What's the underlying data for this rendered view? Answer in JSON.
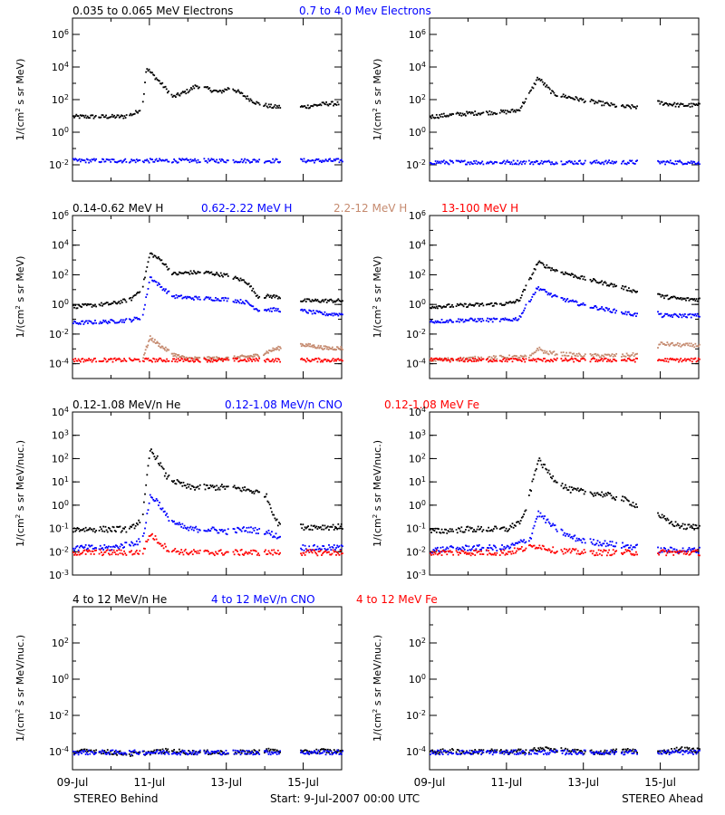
{
  "figure": {
    "footer_left": "STEREO Behind",
    "footer_center": "Start:  9-Jul-2007 00:00 UTC",
    "footer_right": "STEREO Ahead",
    "x_ticks": [
      "09-Jul",
      "11-Jul",
      "13-Jul",
      "15-Jul"
    ],
    "x_range_days": [
      0,
      7
    ]
  },
  "rows": [
    {
      "row_labels": [
        {
          "text": "0.035 to 0.065 MeV Electrons",
          "color": "#000000"
        },
        {
          "text": "0.7 to 4.0 Mev Electrons",
          "color": "#0000ff"
        }
      ],
      "ylabel_html": "1/(cm<tspan baseline-shift=\"super\" font-size=\"7\">2</tspan> s sr MeV)",
      "ylabel_parts": [
        "1/(cm",
        "2",
        " s sr MeV)"
      ],
      "y_exp_range": [
        -3,
        7
      ],
      "y_ticks": [
        {
          "base": "10",
          "exp": "-2",
          "v": -2
        },
        {
          "base": "10",
          "exp": "0",
          "v": 0
        },
        {
          "base": "10",
          "exp": "2",
          "v": 2
        },
        {
          "base": "10",
          "exp": "4",
          "v": 4
        },
        {
          "base": "10",
          "exp": "6",
          "v": 6
        }
      ]
    },
    {
      "row_labels": [
        {
          "text": "0.14-0.62 MeV H",
          "color": "#000000"
        },
        {
          "text": "0.62-2.22 MeV H",
          "color": "#0000ff"
        },
        {
          "text": "2.2-12 MeV H",
          "color": "#c58a6f"
        },
        {
          "text": "13-100 MeV H",
          "color": "#ff0000"
        }
      ],
      "ylabel_parts": [
        "1/(cm",
        "2",
        " s sr MeV)"
      ],
      "y_exp_range": [
        -5,
        6
      ],
      "y_ticks": [
        {
          "base": "10",
          "exp": "-4",
          "v": -4
        },
        {
          "base": "10",
          "exp": "-2",
          "v": -2
        },
        {
          "base": "10",
          "exp": "0",
          "v": 0
        },
        {
          "base": "10",
          "exp": "2",
          "v": 2
        },
        {
          "base": "10",
          "exp": "4",
          "v": 4
        },
        {
          "base": "10",
          "exp": "6",
          "v": 6
        }
      ]
    },
    {
      "row_labels": [
        {
          "text": "0.12-1.08 MeV/n He",
          "color": "#000000"
        },
        {
          "text": "0.12-1.08 MeV/n CNO",
          "color": "#0000ff"
        },
        {
          "text": "0.12-1.08 MeV Fe",
          "color": "#ff0000"
        }
      ],
      "ylabel_parts": [
        "1/(cm",
        "2",
        " s sr MeV/nuc.)"
      ],
      "y_exp_range": [
        -3,
        4
      ],
      "y_ticks": [
        {
          "base": "10",
          "exp": "-3",
          "v": -3
        },
        {
          "base": "10",
          "exp": "-2",
          "v": -2
        },
        {
          "base": "10",
          "exp": "-1",
          "v": -1
        },
        {
          "base": "10",
          "exp": "0",
          "v": 0
        },
        {
          "base": "10",
          "exp": "1",
          "v": 1
        },
        {
          "base": "10",
          "exp": "2",
          "v": 2
        },
        {
          "base": "10",
          "exp": "3",
          "v": 3
        },
        {
          "base": "10",
          "exp": "4",
          "v": 4
        }
      ]
    },
    {
      "row_labels": [
        {
          "text": "4 to 12 MeV/n He",
          "color": "#000000"
        },
        {
          "text": "4 to 12 MeV/n CNO",
          "color": "#0000ff"
        },
        {
          "text": "4 to 12 MeV Fe",
          "color": "#ff0000"
        }
      ],
      "ylabel_parts": [
        "1/(cm",
        "2",
        " s sr MeV/nuc.)"
      ],
      "y_exp_range": [
        -5,
        4
      ],
      "y_ticks": [
        {
          "base": "10",
          "exp": "-4",
          "v": -4
        },
        {
          "base": "10",
          "exp": "-2",
          "v": -2
        },
        {
          "base": "10",
          "exp": "0",
          "v": 0
        },
        {
          "base": "10",
          "exp": "2",
          "v": 2
        }
      ]
    }
  ],
  "chart_data": [
    {
      "type": "scatter",
      "spacecraft": "STEREO Behind",
      "y_scale": "log",
      "xlim": [
        0,
        7
      ],
      "ylim_log10": [
        -3,
        7
      ],
      "series": [
        {
          "name": "0.035 to 0.065 MeV Electrons",
          "color": "#000000",
          "x": [
            0.0,
            0.5,
            1.0,
            1.3,
            1.6,
            1.8,
            1.9,
            2.3,
            2.6,
            3.0,
            3.2,
            3.8,
            4.1,
            4.5,
            4.8,
            5.2,
            6.0,
            6.6,
            6.9
          ],
          "log_y": [
            1.0,
            1.0,
            1.0,
            1.0,
            1.2,
            1.6,
            4.0,
            3.0,
            2.2,
            2.6,
            2.9,
            2.5,
            2.8,
            2.2,
            1.8,
            1.6,
            1.6,
            1.8,
            1.8
          ]
        },
        {
          "name": "0.7 to 4.0 Mev Electrons",
          "color": "#0000ff",
          "x": [
            0.0,
            1.0,
            2.0,
            3.0,
            4.0,
            5.0,
            6.0,
            7.0
          ],
          "log_y": [
            -1.7,
            -1.7,
            -1.7,
            -1.7,
            -1.7,
            -1.7,
            -1.7,
            -1.7
          ]
        }
      ]
    },
    {
      "type": "scatter",
      "spacecraft": "STEREO Ahead",
      "y_scale": "log",
      "xlim": [
        0,
        7
      ],
      "ylim_log10": [
        -3,
        7
      ],
      "series": [
        {
          "name": "0.035 to 0.065 MeV Electrons",
          "color": "#000000",
          "x": [
            0.0,
            1.0,
            2.0,
            2.3,
            2.6,
            2.8,
            3.2,
            4.0,
            5.0,
            5.5,
            5.8,
            6.5,
            7.0
          ],
          "log_y": [
            1.0,
            1.2,
            1.3,
            1.4,
            2.5,
            3.4,
            2.4,
            2.0,
            1.6,
            1.6,
            1.9,
            1.7,
            1.7
          ]
        },
        {
          "name": "0.7 to 4.0 Mev Electrons",
          "color": "#0000ff",
          "x": [
            0.0,
            1.0,
            2.0,
            3.0,
            4.0,
            5.0,
            6.0,
            7.0
          ],
          "log_y": [
            -1.8,
            -1.8,
            -1.8,
            -1.8,
            -1.8,
            -1.8,
            -1.8,
            -1.8
          ]
        }
      ]
    },
    {
      "type": "scatter",
      "spacecraft": "STEREO Behind",
      "y_scale": "log",
      "xlim": [
        0,
        7
      ],
      "ylim_log10": [
        -5,
        6
      ],
      "series": [
        {
          "name": "0.14-0.62 MeV H",
          "color": "#000000",
          "x": [
            0.0,
            1.0,
            1.5,
            1.8,
            2.0,
            2.3,
            2.6,
            3.0,
            3.5,
            4.0,
            4.5,
            4.8,
            5.2,
            5.5,
            6.0,
            6.6,
            7.0
          ],
          "log_y": [
            -0.1,
            0.1,
            0.4,
            1.2,
            3.5,
            3.0,
            2.1,
            2.2,
            2.2,
            2.0,
            1.6,
            0.6,
            0.6,
            0.5,
            0.3,
            0.3,
            0.3
          ]
        },
        {
          "name": "0.62-2.22 MeV H",
          "color": "#0000ff",
          "x": [
            0.0,
            1.0,
            1.5,
            1.8,
            2.0,
            2.3,
            2.6,
            3.0,
            4.0,
            4.5,
            4.8,
            5.2,
            6.0,
            6.6,
            7.0
          ],
          "log_y": [
            -1.2,
            -1.1,
            -1.0,
            -0.8,
            1.9,
            1.2,
            0.6,
            0.5,
            0.4,
            0.2,
            -0.3,
            -0.3,
            -0.4,
            -0.6,
            -0.6
          ]
        },
        {
          "name": "2.2-12 MeV H",
          "color": "#c58a6f",
          "x": [
            1.8,
            2.0,
            2.3,
            2.6,
            2.8,
            3.0,
            4.0,
            4.8,
            5.2,
            5.5,
            5.8,
            6.6,
            7.0
          ],
          "log_y": [
            -3.6,
            -2.2,
            -2.8,
            -3.3,
            -3.5,
            -3.6,
            -3.6,
            -3.4,
            -3.0,
            -2.8,
            -2.6,
            -2.9,
            -2.9
          ]
        },
        {
          "name": "13-100 MeV H",
          "color": "#ff0000",
          "x": [
            0.0,
            1.0,
            2.0,
            3.0,
            4.0,
            5.0,
            6.0,
            7.0
          ],
          "log_y": [
            -3.7,
            -3.7,
            -3.7,
            -3.7,
            -3.7,
            -3.7,
            -3.7,
            -3.7
          ]
        }
      ]
    },
    {
      "type": "scatter",
      "spacecraft": "STEREO Ahead",
      "y_scale": "log",
      "xlim": [
        0,
        7
      ],
      "ylim_log10": [
        -5,
        6
      ],
      "series": [
        {
          "name": "0.14-0.62 MeV H",
          "color": "#000000",
          "x": [
            0.0,
            1.0,
            2.0,
            2.3,
            2.6,
            2.8,
            3.2,
            4.0,
            5.0,
            5.5,
            5.8,
            6.0,
            6.6,
            7.0
          ],
          "log_y": [
            -0.1,
            0.0,
            0.1,
            0.3,
            1.8,
            2.9,
            2.4,
            1.8,
            1.2,
            0.8,
            1.2,
            0.6,
            0.4,
            0.4
          ]
        },
        {
          "name": "0.62-2.22 MeV H",
          "color": "#0000ff",
          "x": [
            0.0,
            1.0,
            2.0,
            2.3,
            2.6,
            2.8,
            3.2,
            4.0,
            5.0,
            5.5,
            5.8,
            6.0,
            6.6,
            7.0
          ],
          "log_y": [
            -1.1,
            -1.0,
            -1.0,
            -0.9,
            0.4,
            1.2,
            0.6,
            0.0,
            -0.5,
            -0.7,
            -0.2,
            -0.7,
            -0.7,
            -0.7
          ]
        },
        {
          "name": "2.2-12 MeV H",
          "color": "#c58a6f",
          "x": [
            0.0,
            1.0,
            2.0,
            2.6,
            2.8,
            3.0,
            4.0,
            5.0,
            5.5,
            5.8,
            6.0,
            6.6,
            7.0
          ],
          "log_y": [
            -3.7,
            -3.6,
            -3.5,
            -3.5,
            -2.9,
            -3.2,
            -3.4,
            -3.4,
            -3.3,
            -3.0,
            -2.6,
            -2.7,
            -2.7
          ]
        },
        {
          "name": "13-100 MeV H",
          "color": "#ff0000",
          "x": [
            0.0,
            1.0,
            2.0,
            3.0,
            4.0,
            5.0,
            6.0,
            7.0
          ],
          "log_y": [
            -3.7,
            -3.7,
            -3.7,
            -3.7,
            -3.7,
            -3.7,
            -3.7,
            -3.7
          ]
        }
      ]
    },
    {
      "type": "scatter",
      "spacecraft": "STEREO Behind",
      "y_scale": "log",
      "xlim": [
        0,
        7
      ],
      "ylim_log10": [
        -3,
        4
      ],
      "series": [
        {
          "name": "0.12-1.08 MeV/n He",
          "color": "#000000",
          "x": [
            0.0,
            1.0,
            1.5,
            1.8,
            2.0,
            2.2,
            2.4,
            2.7,
            3.0,
            3.5,
            4.0,
            4.5,
            5.0,
            5.3,
            5.6,
            6.0,
            6.6,
            7.0
          ],
          "log_y": [
            -1.0,
            -1.0,
            -1.0,
            -0.5,
            2.4,
            2.0,
            1.3,
            1.0,
            0.8,
            0.8,
            0.8,
            0.7,
            0.5,
            -0.7,
            -0.9,
            -0.9,
            -0.9,
            -0.9
          ]
        },
        {
          "name": "0.12-1.08 MeV/n CNO",
          "color": "#0000ff",
          "x": [
            0.0,
            1.0,
            1.8,
            2.0,
            2.2,
            2.4,
            2.7,
            3.0,
            3.5,
            4.0,
            4.5,
            5.0,
            5.3,
            6.0,
            7.0
          ],
          "log_y": [
            -1.8,
            -1.8,
            -1.5,
            0.4,
            0.2,
            -0.4,
            -0.8,
            -1.0,
            -1.0,
            -1.1,
            -1.0,
            -1.1,
            -1.3,
            -1.8,
            -1.8
          ]
        },
        {
          "name": "0.12-1.08 MeV Fe",
          "color": "#ff0000",
          "x": [
            0.0,
            1.0,
            1.8,
            2.0,
            2.2,
            2.5,
            3.0,
            4.0,
            5.0,
            6.0,
            7.0
          ],
          "log_y": [
            -2.0,
            -2.0,
            -2.0,
            -1.2,
            -1.5,
            -1.9,
            -2.0,
            -2.0,
            -2.0,
            -2.0,
            -2.0
          ]
        }
      ]
    },
    {
      "type": "scatter",
      "spacecraft": "STEREO Ahead",
      "y_scale": "log",
      "xlim": [
        0,
        7
      ],
      "ylim_log10": [
        -3,
        4
      ],
      "series": [
        {
          "name": "0.12-1.08 MeV/n He",
          "color": "#000000",
          "x": [
            0.0,
            1.0,
            2.0,
            2.4,
            2.6,
            2.8,
            3.2,
            3.6,
            4.0,
            4.5,
            5.0,
            5.4,
            5.8,
            6.2,
            6.6,
            7.0
          ],
          "log_y": [
            -1.1,
            -1.0,
            -1.0,
            -0.6,
            0.6,
            2.0,
            1.2,
            0.7,
            0.6,
            0.5,
            0.3,
            0.0,
            -0.2,
            -0.7,
            -0.9,
            -0.9
          ]
        },
        {
          "name": "0.12-1.08 MeV/n CNO",
          "color": "#0000ff",
          "x": [
            0.0,
            1.0,
            2.0,
            2.6,
            2.8,
            3.2,
            3.6,
            4.0,
            5.0,
            6.0,
            7.0
          ],
          "log_y": [
            -1.9,
            -1.8,
            -1.8,
            -1.4,
            -0.3,
            -0.9,
            -1.3,
            -1.5,
            -1.7,
            -1.9,
            -1.9
          ]
        },
        {
          "name": "0.12-1.08 MeV Fe",
          "color": "#ff0000",
          "x": [
            0.0,
            1.0,
            2.0,
            2.8,
            3.2,
            4.0,
            5.0,
            6.0,
            7.0
          ],
          "log_y": [
            -2.0,
            -2.0,
            -2.0,
            -1.7,
            -1.9,
            -2.0,
            -2.0,
            -2.0,
            -2.0
          ]
        }
      ]
    },
    {
      "type": "scatter",
      "spacecraft": "STEREO Behind",
      "y_scale": "log",
      "xlim": [
        0,
        7
      ],
      "ylim_log10": [
        -5,
        4
      ],
      "series": [
        {
          "name": "4 to 12 MeV/n He",
          "color": "#000000",
          "x": [
            0.0,
            0.5,
            1.0,
            1.5,
            2.0,
            2.5,
            3.0,
            3.5,
            4.0,
            4.5,
            5.0,
            5.5,
            6.0,
            6.5,
            7.0
          ],
          "log_y": [
            -4.0,
            -3.9,
            -4.0,
            -4.1,
            -4.0,
            -3.9,
            -4.0,
            -4.0,
            -4.0,
            -4.0,
            -3.9,
            -3.9,
            -4.0,
            -3.9,
            -4.0
          ]
        },
        {
          "name": "4 to 12 MeV/n CNO",
          "color": "#0000ff",
          "x": [
            0.0,
            1.0,
            2.0,
            3.0,
            4.0,
            5.0,
            6.0,
            7.0
          ],
          "log_y": [
            -4.0,
            -4.0,
            -4.0,
            -4.0,
            -4.0,
            -4.0,
            -4.0,
            -4.0
          ]
        }
      ]
    },
    {
      "type": "scatter",
      "spacecraft": "STEREO Ahead",
      "y_scale": "log",
      "xlim": [
        0,
        7
      ],
      "ylim_log10": [
        -5,
        4
      ],
      "series": [
        {
          "name": "4 to 12 MeV/n He",
          "color": "#000000",
          "x": [
            0.0,
            0.5,
            1.0,
            1.5,
            2.0,
            2.5,
            3.0,
            3.5,
            4.0,
            4.5,
            5.0,
            5.5,
            6.0,
            6.5,
            7.0
          ],
          "log_y": [
            -4.0,
            -3.9,
            -4.0,
            -3.9,
            -4.0,
            -3.9,
            -3.8,
            -3.9,
            -4.0,
            -4.0,
            -3.9,
            -3.9,
            -4.0,
            -3.8,
            -3.9
          ]
        },
        {
          "name": "4 to 12 MeV/n CNO",
          "color": "#0000ff",
          "x": [
            0.0,
            1.0,
            2.0,
            3.0,
            4.0,
            5.0,
            6.0,
            7.0
          ],
          "log_y": [
            -4.0,
            -4.0,
            -4.0,
            -4.0,
            -4.0,
            -4.0,
            -4.0,
            -4.0
          ]
        }
      ]
    }
  ]
}
